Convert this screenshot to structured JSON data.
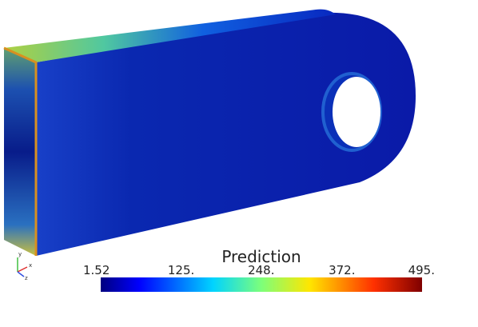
{
  "colorbar": {
    "title": "Prediction",
    "range": [
      1.52,
      495
    ],
    "ticks": [
      {
        "value": 1.52,
        "label": "1.52"
      },
      {
        "value": 125,
        "label": "125."
      },
      {
        "value": 248,
        "label": "248."
      },
      {
        "value": 372,
        "label": "372."
      },
      {
        "value": 495,
        "label": "495."
      }
    ]
  },
  "axes_triad": {
    "x": "x",
    "y": "y",
    "z": "z"
  }
}
